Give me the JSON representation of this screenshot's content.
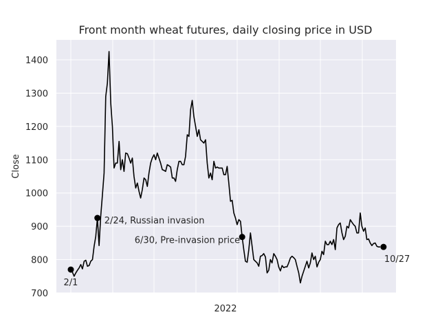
{
  "chart_data": {
    "type": "line",
    "title": "Front month wheat futures, daily closing price in USD",
    "xlabel": "2022",
    "ylabel": "Close",
    "ylim": [
      700,
      1460
    ],
    "yticks": [
      700,
      800,
      900,
      1000,
      1100,
      1200,
      1300,
      1400
    ],
    "grid": true,
    "background": "#eaeaf2",
    "line_color": "#000000",
    "series": [
      {
        "values": [
          770,
          762,
          750,
          760,
          768,
          775,
          785,
          772,
          795,
          798,
          780,
          782,
          795,
          800,
          840,
          870,
          925,
          842,
          930,
          995,
          1060,
          1290,
          1330,
          1425,
          1270,
          1200,
          1075,
          1090,
          1090,
          1155,
          1070,
          1100,
          1065,
          1120,
          1118,
          1105,
          1090,
          1105,
          1050,
          1015,
          1030,
          1005,
          985,
          1010,
          1045,
          1040,
          1020,
          1060,
          1090,
          1105,
          1115,
          1100,
          1120,
          1105,
          1090,
          1070,
          1068,
          1065,
          1085,
          1082,
          1078,
          1045,
          1045,
          1035,
          1070,
          1095,
          1095,
          1085,
          1085,
          1110,
          1175,
          1170,
          1250,
          1278,
          1230,
          1200,
          1170,
          1190,
          1160,
          1155,
          1150,
          1160,
          1090,
          1045,
          1060,
          1040,
          1095,
          1075,
          1078,
          1075,
          1075,
          1075,
          1055,
          1055,
          1080,
          1030,
          975,
          978,
          940,
          925,
          905,
          920,
          915,
          868,
          830,
          795,
          792,
          830,
          880,
          840,
          800,
          795,
          790,
          780,
          810,
          812,
          818,
          808,
          760,
          768,
          800,
          790,
          818,
          810,
          800,
          778,
          766,
          782,
          776,
          778,
          778,
          790,
          805,
          810,
          806,
          800,
          780,
          760,
          730,
          750,
          765,
          780,
          795,
          775,
          790,
          820,
          800,
          810,
          778,
          792,
          800,
          825,
          815,
          855,
          845,
          845,
          855,
          845,
          860,
          830,
          895,
          905,
          910,
          880,
          860,
          870,
          900,
          895,
          920,
          912,
          905,
          900,
          880,
          880,
          940,
          900,
          885,
          895,
          860,
          862,
          850,
          842,
          848,
          850,
          840,
          838,
          838
        ]
      }
    ],
    "markers": [
      {
        "index": 0,
        "value": 770,
        "label": "2/1"
      },
      {
        "index": 16,
        "value": 925,
        "label": "2/24, Russian invasion"
      },
      {
        "index": 103,
        "value": 868,
        "label": "6/30, Pre-invasion price"
      },
      {
        "index": 188,
        "value": 838,
        "label": "10/27"
      }
    ],
    "x_gridlines": 8
  }
}
